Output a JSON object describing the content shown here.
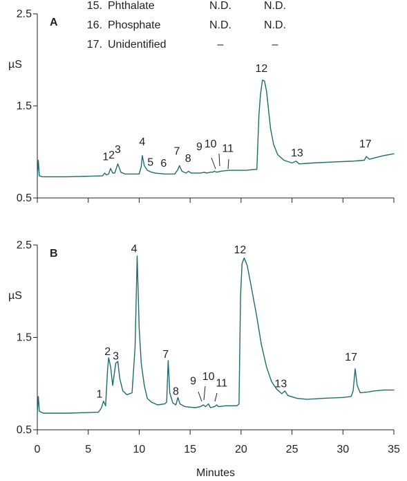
{
  "legend_rows": [
    {
      "num": "15.",
      "name": "Phthalate",
      "a": "N.D.",
      "b": "N.D."
    },
    {
      "num": "16.",
      "name": "Phosphate",
      "a": "N.D.",
      "b": "N.D."
    },
    {
      "num": "17.",
      "name": "Unidentified",
      "a": "–",
      "b": "–"
    }
  ],
  "colors": {
    "trace": "#1e6b6b",
    "axis": "#231f20"
  },
  "chart_data": [
    {
      "type": "line",
      "panel_label": "A",
      "xlabel": "",
      "ylabel": "µS",
      "xlim": [
        0,
        35
      ],
      "ylim": [
        0.5,
        2.5
      ],
      "xticks": [
        0,
        5,
        10,
        15,
        20,
        25,
        30,
        35
      ],
      "yticks": [
        0.5,
        1.5,
        2.5
      ],
      "ytick_labels": [
        "0.5",
        "1.5",
        "2.5"
      ],
      "show_x_tick_labels": false,
      "series": [
        {
          "values": [
            [
              0,
              0.73
            ],
            [
              0.1,
              0.91
            ],
            [
              0.2,
              0.74
            ],
            [
              0.5,
              0.73
            ],
            [
              3,
              0.73
            ],
            [
              6.4,
              0.74
            ],
            [
              6.6,
              0.77
            ],
            [
              6.8,
              0.75
            ],
            [
              7.0,
              0.76
            ],
            [
              7.2,
              0.82
            ],
            [
              7.4,
              0.77
            ],
            [
              7.6,
              0.77
            ],
            [
              7.9,
              0.87
            ],
            [
              8.2,
              0.78
            ],
            [
              8.6,
              0.76
            ],
            [
              10,
              0.76
            ],
            [
              10.2,
              0.84
            ],
            [
              10.3,
              0.96
            ],
            [
              10.5,
              0.85
            ],
            [
              10.8,
              0.8
            ],
            [
              11.2,
              0.78
            ],
            [
              11.6,
              0.77
            ],
            [
              12.5,
              0.76
            ],
            [
              13.5,
              0.76
            ],
            [
              13.8,
              0.81
            ],
            [
              13.95,
              0.85
            ],
            [
              14.2,
              0.79
            ],
            [
              14.6,
              0.77
            ],
            [
              14.85,
              0.79
            ],
            [
              15.1,
              0.77
            ],
            [
              16,
              0.77
            ],
            [
              16.4,
              0.78
            ],
            [
              16.6,
              0.77
            ],
            [
              17.0,
              0.78
            ],
            [
              17.2,
              0.78
            ],
            [
              17.4,
              0.79
            ],
            [
              17.6,
              0.78
            ],
            [
              18,
              0.79
            ],
            [
              18.8,
              0.8
            ],
            [
              19.6,
              0.8
            ],
            [
              20.5,
              0.8
            ],
            [
              21.3,
              0.81
            ],
            [
              21.55,
              0.81
            ],
            [
              21.75,
              1.4
            ],
            [
              21.9,
              1.62
            ],
            [
              22.1,
              1.78
            ],
            [
              22.3,
              1.77
            ],
            [
              22.5,
              1.66
            ],
            [
              22.7,
              1.45
            ],
            [
              22.9,
              1.25
            ],
            [
              23.2,
              1.08
            ],
            [
              23.6,
              0.97
            ],
            [
              24.2,
              0.91
            ],
            [
              25,
              0.88
            ],
            [
              25.4,
              0.9
            ],
            [
              25.7,
              0.87
            ],
            [
              27,
              0.88
            ],
            [
              29,
              0.89
            ],
            [
              31,
              0.9
            ],
            [
              32.1,
              0.91
            ],
            [
              32.3,
              0.95
            ],
            [
              32.6,
              0.92
            ],
            [
              34,
              0.96
            ],
            [
              35,
              0.98
            ]
          ]
        }
      ],
      "peak_labels": [
        {
          "label": "1",
          "x": 6.7,
          "y": 0.91
        },
        {
          "label": "2",
          "x": 7.3,
          "y": 0.93
        },
        {
          "label": "3",
          "x": 7.9,
          "y": 0.99
        },
        {
          "label": "4",
          "x": 10.3,
          "y": 1.07
        },
        {
          "label": "5",
          "x": 11.1,
          "y": 0.85
        },
        {
          "label": "6",
          "x": 12.4,
          "y": 0.84
        },
        {
          "label": "7",
          "x": 13.7,
          "y": 0.97
        },
        {
          "label": "8",
          "x": 14.8,
          "y": 0.89
        },
        {
          "label": "9",
          "x": 15.9,
          "y": 1.02
        },
        {
          "label": "10",
          "x": 17.0,
          "y": 1.05
        },
        {
          "label": "11",
          "x": 18.7,
          "y": 1.0
        },
        {
          "label": "12",
          "x": 22.0,
          "y": 1.87
        },
        {
          "label": "13",
          "x": 25.5,
          "y": 0.95
        },
        {
          "label": "17",
          "x": 32.2,
          "y": 1.05
        }
      ]
    },
    {
      "type": "line",
      "panel_label": "B",
      "xlabel": "Minutes",
      "ylabel": "µS",
      "xlim": [
        0,
        35
      ],
      "ylim": [
        0.5,
        2.5
      ],
      "xticks": [
        0,
        5,
        10,
        15,
        20,
        25,
        30,
        35
      ],
      "xtick_labels": [
        "0",
        "5",
        "10",
        "15",
        "20",
        "25",
        "30",
        "35"
      ],
      "yticks": [
        0.5,
        1.5,
        2.5
      ],
      "ytick_labels": [
        "0.5",
        "1.5",
        "2.5"
      ],
      "show_x_tick_labels": true,
      "series": [
        {
          "values": [
            [
              0,
              0.68
            ],
            [
              0.1,
              0.86
            ],
            [
              0.2,
              0.7
            ],
            [
              0.6,
              0.68
            ],
            [
              3,
              0.68
            ],
            [
              6.0,
              0.69
            ],
            [
              6.3,
              0.74
            ],
            [
              6.5,
              0.81
            ],
            [
              6.7,
              0.76
            ],
            [
              6.9,
              1.15
            ],
            [
              7.0,
              1.28
            ],
            [
              7.2,
              1.18
            ],
            [
              7.4,
              0.98
            ],
            [
              7.7,
              1.22
            ],
            [
              7.9,
              1.24
            ],
            [
              8.1,
              1.05
            ],
            [
              8.4,
              0.92
            ],
            [
              8.8,
              0.88
            ],
            [
              9.3,
              0.9
            ],
            [
              9.6,
              1.4
            ],
            [
              9.8,
              2.38
            ],
            [
              10.0,
              1.6
            ],
            [
              10.2,
              1.22
            ],
            [
              10.5,
              0.98
            ],
            [
              10.8,
              0.84
            ],
            [
              11.2,
              0.8
            ],
            [
              11.8,
              0.77
            ],
            [
              12.5,
              0.78
            ],
            [
              12.7,
              0.8
            ],
            [
              12.85,
              1.25
            ],
            [
              13.0,
              0.9
            ],
            [
              13.3,
              0.79
            ],
            [
              13.6,
              0.77
            ],
            [
              13.8,
              0.85
            ],
            [
              14.0,
              0.78
            ],
            [
              14.5,
              0.75
            ],
            [
              15.5,
              0.74
            ],
            [
              16.0,
              0.75
            ],
            [
              16.3,
              0.77
            ],
            [
              16.5,
              0.75
            ],
            [
              16.8,
              0.78
            ],
            [
              17.0,
              0.74
            ],
            [
              17.4,
              0.75
            ],
            [
              17.6,
              0.77
            ],
            [
              17.8,
              0.75
            ],
            [
              18.5,
              0.76
            ],
            [
              19.2,
              0.76
            ],
            [
              19.6,
              0.76
            ],
            [
              19.8,
              0.78
            ],
            [
              19.95,
              1.95
            ],
            [
              20.1,
              2.3
            ],
            [
              20.3,
              2.36
            ],
            [
              20.6,
              2.28
            ],
            [
              21.0,
              2.05
            ],
            [
              21.5,
              1.75
            ],
            [
              22.0,
              1.42
            ],
            [
              22.5,
              1.18
            ],
            [
              23.0,
              1.02
            ],
            [
              23.5,
              0.94
            ],
            [
              24.0,
              0.89
            ],
            [
              24.3,
              0.92
            ],
            [
              24.6,
              0.87
            ],
            [
              25.5,
              0.84
            ],
            [
              26.5,
              0.83
            ],
            [
              28,
              0.84
            ],
            [
              30,
              0.85
            ],
            [
              30.8,
              0.86
            ],
            [
              31.0,
              0.92
            ],
            [
              31.2,
              1.16
            ],
            [
              31.4,
              0.98
            ],
            [
              31.7,
              0.9
            ],
            [
              32.5,
              0.91
            ],
            [
              33,
              0.92
            ],
            [
              34,
              0.93
            ],
            [
              35,
              0.93
            ]
          ]
        }
      ],
      "peak_labels": [
        {
          "label": "1",
          "x": 6.1,
          "y": 0.85
        },
        {
          "label": "2",
          "x": 6.9,
          "y": 1.31
        },
        {
          "label": "3",
          "x": 7.7,
          "y": 1.26
        },
        {
          "label": "4",
          "x": 9.5,
          "y": 2.42
        },
        {
          "label": "7",
          "x": 12.6,
          "y": 1.28
        },
        {
          "label": "8",
          "x": 13.6,
          "y": 0.88
        },
        {
          "label": "9",
          "x": 15.3,
          "y": 0.99
        },
        {
          "label": "10",
          "x": 16.8,
          "y": 1.04
        },
        {
          "label": "11",
          "x": 18.1,
          "y": 0.97
        },
        {
          "label": "12",
          "x": 19.9,
          "y": 2.41
        },
        {
          "label": "13",
          "x": 23.9,
          "y": 0.96
        },
        {
          "label": "17",
          "x": 30.8,
          "y": 1.25
        }
      ]
    }
  ]
}
